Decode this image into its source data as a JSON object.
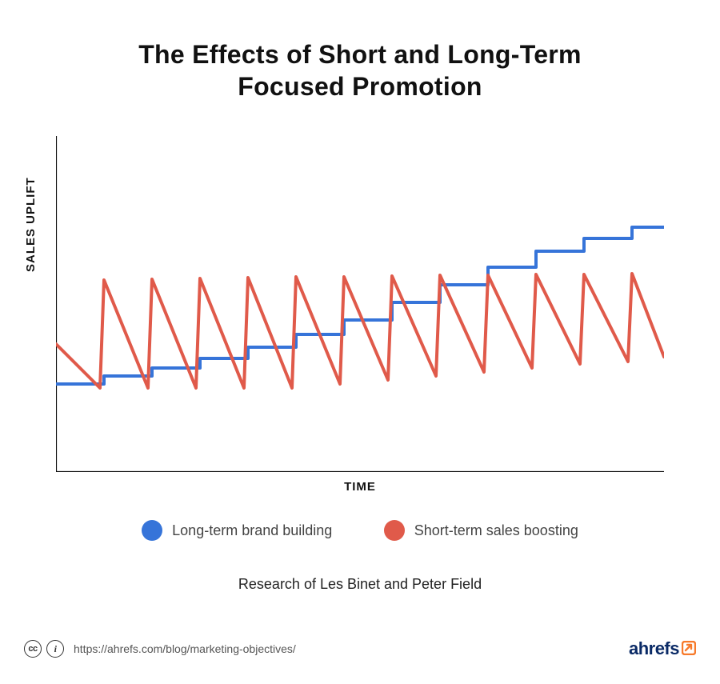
{
  "title_line1": "The Effects of Short and Long-Term",
  "title_line2": "Focused Promotion",
  "chart": {
    "type": "line",
    "xlabel": "TIME",
    "ylabel": "SALES UPLIFT",
    "background_color": "#ffffff",
    "axis_color": "#111111",
    "axis_width": 2.2,
    "xlim": [
      0,
      760
    ],
    "ylim": [
      0,
      420
    ],
    "series": {
      "long_term": {
        "label": "Long-term brand building",
        "color": "#3674d9",
        "stroke_width": 4,
        "points": [
          [
            0,
            310
          ],
          [
            60,
            310
          ],
          [
            60,
            300
          ],
          [
            120,
            300
          ],
          [
            120,
            290
          ],
          [
            180,
            290
          ],
          [
            180,
            278
          ],
          [
            240,
            278
          ],
          [
            240,
            264
          ],
          [
            300,
            264
          ],
          [
            300,
            248
          ],
          [
            360,
            248
          ],
          [
            360,
            230
          ],
          [
            420,
            230
          ],
          [
            420,
            208
          ],
          [
            480,
            208
          ],
          [
            480,
            186
          ],
          [
            540,
            186
          ],
          [
            540,
            164
          ],
          [
            600,
            164
          ],
          [
            600,
            144
          ],
          [
            660,
            144
          ],
          [
            660,
            128
          ],
          [
            720,
            128
          ],
          [
            720,
            114
          ],
          [
            760,
            114
          ]
        ]
      },
      "short_term": {
        "label": "Short-term sales boosting",
        "color": "#e05a4a",
        "stroke_width": 4,
        "spike_height": 110,
        "baseline_start_y": 260,
        "baseline_end_y": 280,
        "peak_start_y": 180,
        "peak_end_y": 172,
        "spikes": 12,
        "spike_width": 60,
        "points": [
          [
            0,
            260
          ],
          [
            55,
            315
          ],
          [
            60,
            180
          ],
          [
            115,
            315
          ],
          [
            120,
            179
          ],
          [
            175,
            315
          ],
          [
            180,
            178
          ],
          [
            235,
            315
          ],
          [
            240,
            177
          ],
          [
            295,
            315
          ],
          [
            300,
            176
          ],
          [
            355,
            310
          ],
          [
            360,
            176
          ],
          [
            415,
            305
          ],
          [
            420,
            175
          ],
          [
            475,
            300
          ],
          [
            480,
            174
          ],
          [
            535,
            295
          ],
          [
            540,
            174
          ],
          [
            595,
            290
          ],
          [
            600,
            173
          ],
          [
            655,
            285
          ],
          [
            660,
            173
          ],
          [
            715,
            282
          ],
          [
            720,
            172
          ],
          [
            760,
            276
          ]
        ]
      }
    }
  },
  "legend": {
    "items": [
      {
        "label": "Long-term brand building",
        "color": "#3674d9"
      },
      {
        "label": "Short-term sales boosting",
        "color": "#e05a4a"
      }
    ],
    "dot_radius": 13,
    "font_size": 18,
    "font_color": "#444444"
  },
  "research_credit": "Research of Les Binet and Peter Field",
  "footer": {
    "cc_icon_1": "cc",
    "cc_icon_2": "i",
    "url": "https://ahrefs.com/blog/marketing-objectives/",
    "brand_name": "ahrefs",
    "brand_color_text": "#0a2a66",
    "brand_color_accent": "#f77a2b"
  },
  "title_fontsize": 32,
  "label_fontsize": 15,
  "credit_fontsize": 18
}
